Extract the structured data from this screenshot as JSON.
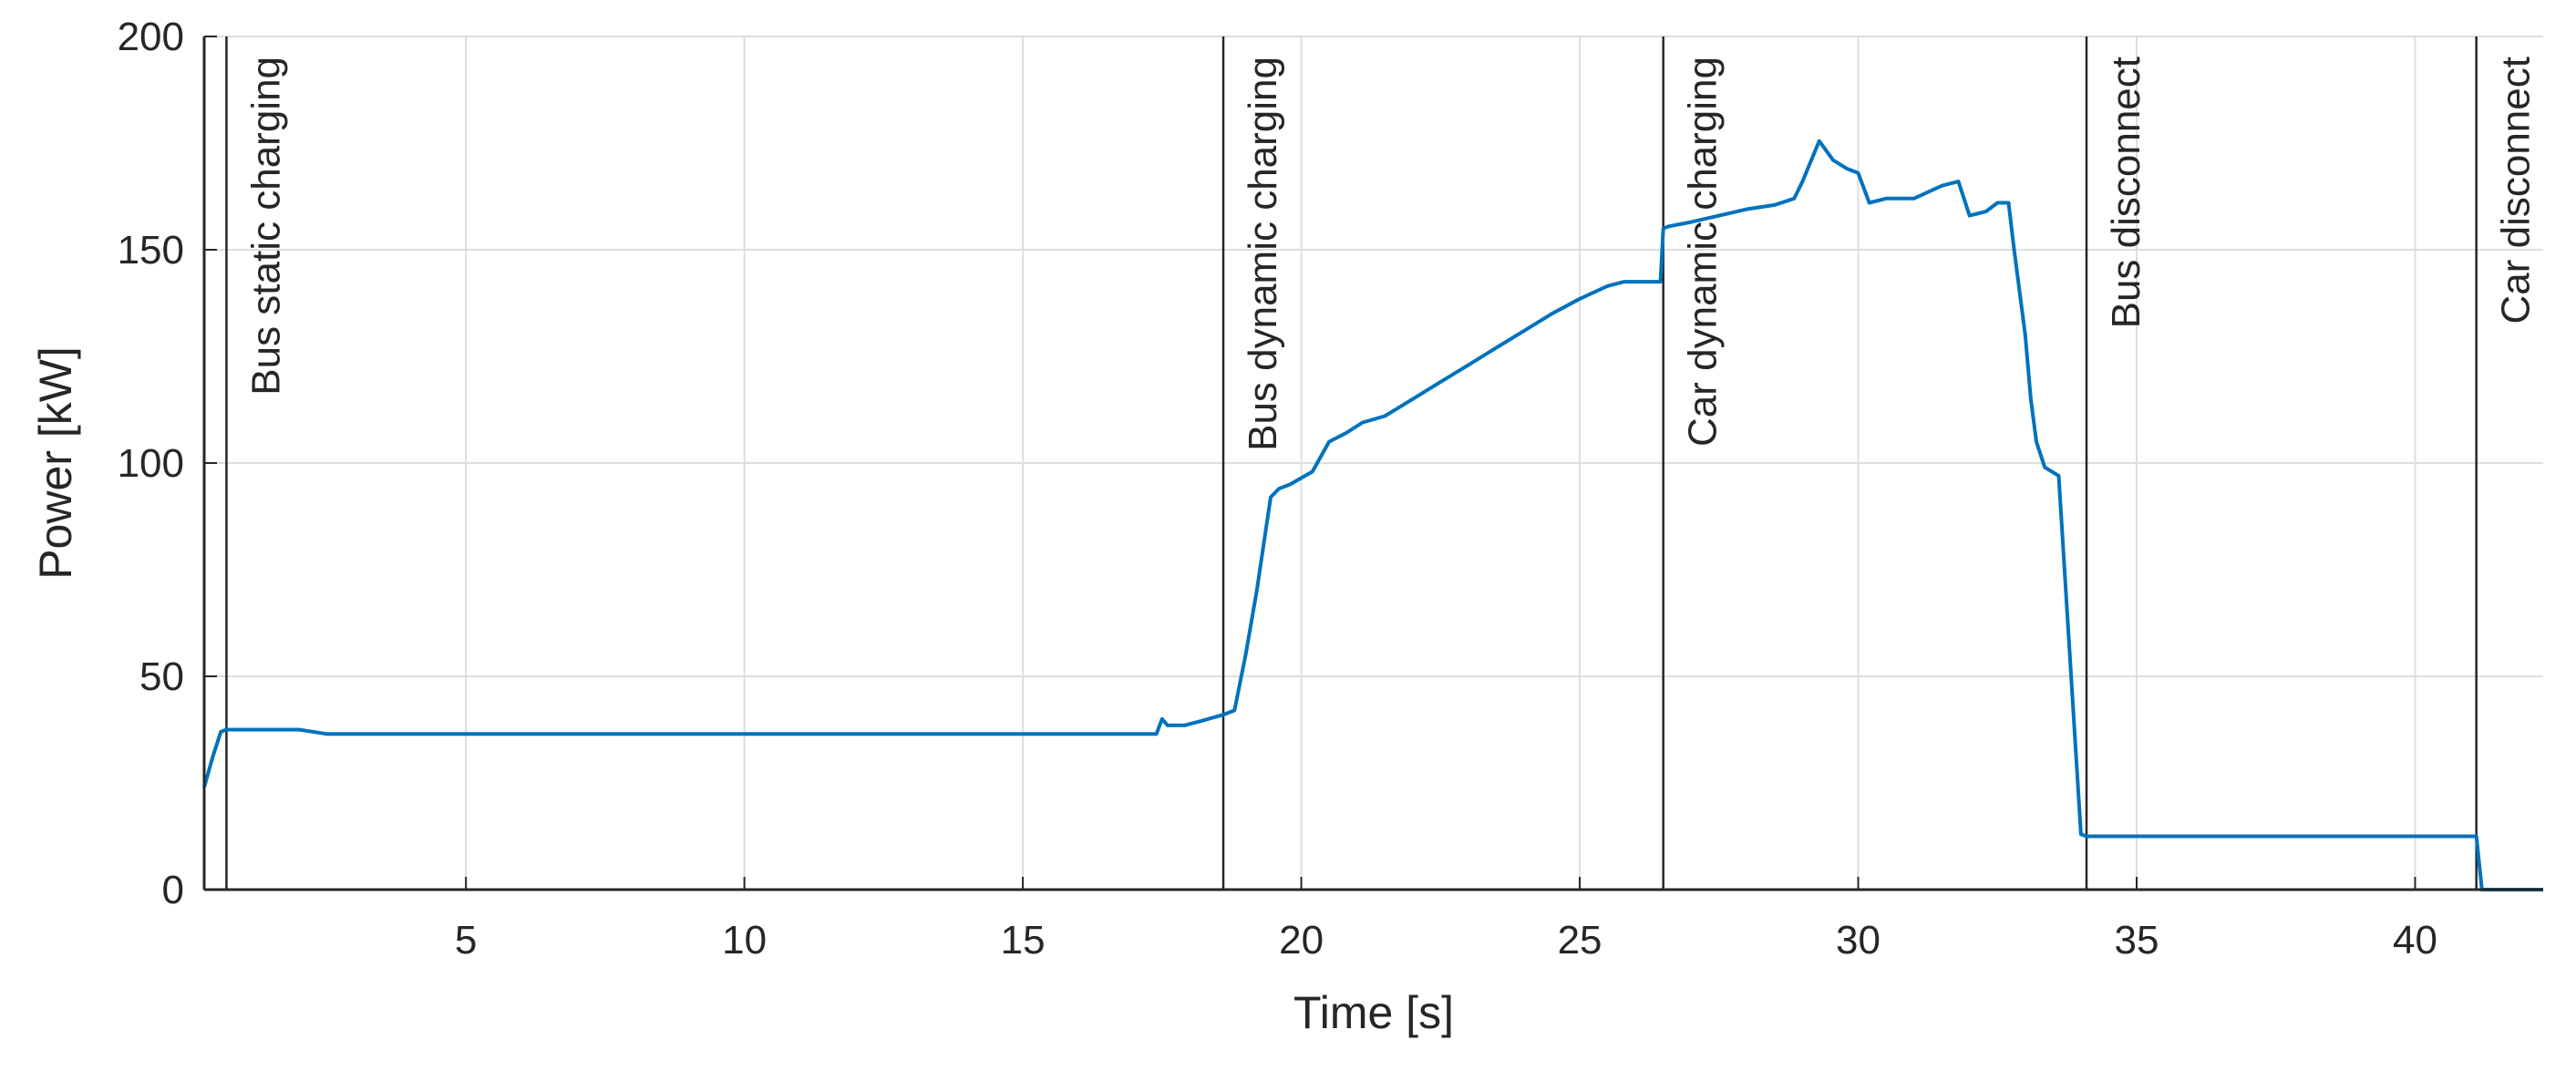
{
  "chart_data": {
    "type": "line",
    "xlabel": "Time [s]",
    "ylabel": "Power [kW]",
    "xlim": [
      0.3,
      42.3
    ],
    "ylim": [
      0,
      200
    ],
    "xticks": [
      5,
      10,
      15,
      20,
      25,
      30,
      35,
      40
    ],
    "xtick_labels": [
      "5",
      "10",
      "15",
      "20",
      "25",
      "30",
      "35",
      "40"
    ],
    "yticks": [
      0,
      50,
      100,
      150,
      200
    ],
    "ytick_labels": [
      "0",
      "50",
      "100",
      "150",
      "200"
    ],
    "grid": true,
    "line_color": "#0072BD",
    "events": [
      {
        "x": 0.7,
        "label": "Bus static charging"
      },
      {
        "x": 18.6,
        "label": "Bus dynamic charging"
      },
      {
        "x": 26.5,
        "label": "Car dynamic charging"
      },
      {
        "x": 34.1,
        "label": "Bus disconnect"
      },
      {
        "x": 41.1,
        "label": "Car disconnect"
      }
    ],
    "series": [
      {
        "x": [
          0.3,
          0.45,
          0.6,
          0.7,
          1.0,
          2.0,
          2.5,
          5,
          10,
          15,
          17.4,
          17.5,
          17.6,
          17.9,
          18.2,
          18.6,
          18.8,
          19.0,
          19.2,
          19.45,
          19.6,
          19.8,
          20.2,
          20.5,
          20.8,
          21.1,
          21.5,
          22.0,
          22.5,
          23.0,
          23.5,
          24.0,
          24.5,
          25.0,
          25.5,
          25.8,
          26.0,
          26.45,
          26.5,
          26.6,
          27.0,
          27.5,
          28.0,
          28.5,
          28.85,
          29.0,
          29.3,
          29.55,
          29.8,
          30.0,
          30.2,
          30.5,
          31.0,
          31.5,
          31.8,
          32.0,
          32.3,
          32.5,
          32.7,
          32.8,
          33.0,
          33.1,
          33.2,
          33.35,
          33.6,
          33.8,
          34.0,
          34.1,
          35.0,
          40.0,
          41.0,
          41.1,
          41.2,
          42.3
        ],
        "y": [
          24,
          31,
          37,
          37.5,
          37.5,
          37.5,
          36.5,
          36.5,
          36.5,
          36.5,
          36.5,
          40,
          38.5,
          38.5,
          39.5,
          41,
          42,
          55,
          70,
          92,
          94,
          95,
          98,
          105,
          107,
          109.5,
          111,
          115,
          119,
          123,
          127,
          131,
          135,
          138.5,
          141.5,
          142.5,
          142.5,
          142.5,
          155,
          155.5,
          156.5,
          158,
          159.5,
          160.5,
          162,
          166,
          175.5,
          171,
          169,
          168,
          161,
          162,
          162,
          165,
          166,
          158,
          159,
          161,
          161,
          150,
          130,
          115,
          105,
          99,
          97,
          55,
          13,
          12.5,
          12.5,
          12.5,
          12.5,
          12.5,
          0,
          0
        ]
      }
    ]
  }
}
